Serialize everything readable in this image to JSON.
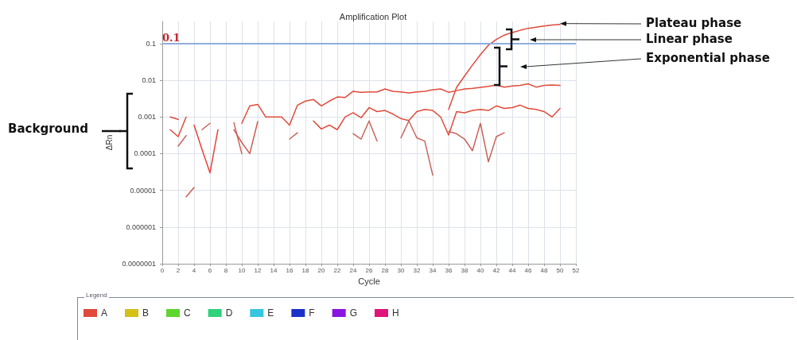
{
  "chart_data": {
    "type": "line",
    "title": "Amplification Plot",
    "xlabel": "Cycle",
    "ylabel": "ΔRn",
    "legend_title": "Legend",
    "x": [
      1,
      2,
      3,
      4,
      5,
      6,
      7,
      8,
      9,
      10,
      11,
      12,
      13,
      14,
      15,
      16,
      17,
      18,
      19,
      20,
      21,
      22,
      23,
      24,
      25,
      26,
      27,
      28,
      29,
      30,
      31,
      32,
      33,
      34,
      35,
      36,
      37,
      38,
      39,
      40,
      41,
      42,
      43,
      44,
      45,
      46,
      47,
      48,
      49,
      50
    ],
    "series": [
      {
        "name": "A",
        "color": "#e04a3a",
        "values": [
          0.001,
          0.00086,
          null,
          null,
          null,
          null,
          null,
          null,
          null,
          0.00067,
          0.002,
          0.0022,
          0.001,
          0.001,
          0.001,
          0.0006,
          0.0021,
          0.0027,
          0.003,
          0.002,
          0.0027,
          0.0035,
          0.0034,
          0.005,
          0.0047,
          0.0048,
          0.0048,
          0.0058,
          0.005,
          0.0048,
          0.0045,
          0.0048,
          0.005,
          0.0055,
          0.0058,
          0.0047,
          0.0052,
          0.0058,
          0.006,
          0.0064,
          0.0068,
          0.0074,
          0.0065,
          0.007,
          0.0072,
          0.008,
          0.0065,
          0.0072,
          0.0074,
          0.0072
        ]
      },
      {
        "color": "#e04a3a",
        "values": [
          null,
          null,
          null,
          null,
          null,
          null,
          null,
          null,
          null,
          null,
          null,
          null,
          null,
          null,
          null,
          null,
          null,
          null,
          null,
          null,
          null,
          null,
          null,
          null,
          null,
          null,
          null,
          null,
          null,
          null,
          null,
          null,
          null,
          null,
          null,
          0.0016,
          0.0064,
          0.013,
          0.026,
          0.05,
          0.09,
          0.13,
          0.17,
          0.2,
          0.23,
          0.26,
          0.28,
          0.3,
          0.32,
          0.33
        ]
      },
      {
        "color": "#e04a3a",
        "values": [
          0.00045,
          0.00029,
          0.001,
          null,
          null,
          null,
          null,
          null,
          null,
          null,
          null,
          null,
          null,
          null,
          null,
          null,
          null,
          null,
          0.00078,
          0.00047,
          0.0006,
          0.00045,
          0.001,
          0.0013,
          0.00095,
          0.0018,
          0.0014,
          0.0015,
          0.0012,
          0.0009,
          0.0008,
          0.0014,
          0.0016,
          0.0015,
          0.001,
          0.00032,
          0.0014,
          0.0013,
          0.0015,
          0.0016,
          0.0015,
          0.002,
          0.0017,
          0.0018,
          0.0021,
          0.0017,
          0.0016,
          0.0014,
          0.001,
          0.0017
        ]
      },
      {
        "color": "#c8645a",
        "values": [
          null,
          0.00016,
          0.00031,
          null,
          0.00045,
          0.00067,
          null,
          null,
          0.0007,
          0.0001,
          null,
          null,
          null,
          null,
          null,
          0.00025,
          0.00037,
          null,
          null,
          null,
          null,
          null,
          null,
          0.00035,
          0.00025,
          0.00078,
          0.00022,
          null,
          null,
          0.00027,
          0.00078,
          0.00027,
          0.00022,
          2.6e-05,
          null,
          0.0004,
          0.00035,
          0.00025,
          0.00012,
          0.00067,
          6e-05,
          0.00029,
          0.00037,
          null,
          null,
          null,
          null,
          null,
          null,
          null
        ]
      },
      {
        "color": "#e8403a",
        "values": [
          null,
          null,
          null,
          0.0006,
          0.00013,
          3e-05,
          0.00045,
          null,
          null,
          null,
          null,
          null,
          null,
          null,
          null,
          null,
          null,
          null,
          null,
          null,
          null,
          null,
          null,
          null,
          null,
          null,
          null,
          null,
          null,
          null,
          null,
          null,
          null,
          null,
          null,
          null,
          null,
          null,
          null,
          null,
          null,
          null,
          null,
          null,
          null,
          null,
          null,
          null,
          null,
          null
        ]
      },
      {
        "color": "#d05a55",
        "values": [
          null,
          null,
          6.7e-06,
          1.2e-05,
          null,
          null,
          null,
          null,
          0.00045,
          0.0002,
          0.0001,
          0.00075,
          null,
          null,
          null,
          null,
          null,
          null,
          null,
          null,
          null,
          null,
          null,
          null,
          null,
          null,
          null,
          null,
          null,
          null,
          null,
          null,
          null,
          null,
          null,
          null,
          null,
          null,
          null,
          null,
          null,
          null,
          null,
          null,
          null,
          null,
          null,
          null,
          null,
          null
        ]
      },
      {
        "name": "B",
        "color": "#d4c019",
        "values": [
          null,
          null,
          null,
          null,
          null,
          null,
          null,
          null,
          null,
          null,
          null,
          null,
          null,
          null,
          null,
          null,
          null,
          null,
          null,
          null,
          null,
          null,
          null,
          null,
          null,
          null,
          null,
          null,
          null,
          null,
          null,
          null,
          null,
          null,
          null,
          null,
          null,
          null,
          null,
          null,
          null,
          null,
          null,
          null,
          null,
          null,
          null,
          null,
          null,
          null
        ]
      },
      {
        "name": "C",
        "color": "#5fd62c",
        "values": [
          null,
          null,
          null,
          null,
          null,
          null,
          null,
          null,
          null,
          null,
          null,
          null,
          null,
          null,
          null,
          null,
          null,
          null,
          null,
          null,
          null,
          null,
          null,
          null,
          null,
          null,
          null,
          null,
          null,
          null,
          null,
          null,
          null,
          null,
          null,
          null,
          null,
          null,
          null,
          null,
          null,
          null,
          null,
          null,
          null,
          null,
          null,
          null,
          null,
          null
        ]
      },
      {
        "name": "D",
        "color": "#2fd27a",
        "values": [
          null,
          null,
          null,
          null,
          null,
          null,
          null,
          null,
          null,
          null,
          null,
          null,
          null,
          null,
          null,
          null,
          null,
          null,
          null,
          null,
          null,
          null,
          null,
          null,
          null,
          null,
          null,
          null,
          null,
          null,
          null,
          null,
          null,
          null,
          null,
          null,
          null,
          null,
          null,
          null,
          null,
          null,
          null,
          null,
          null,
          null,
          null,
          null,
          null,
          null
        ]
      },
      {
        "name": "E",
        "color": "#35c5e0",
        "values": [
          null,
          null,
          null,
          null,
          null,
          null,
          null,
          null,
          null,
          null,
          null,
          null,
          null,
          null,
          null,
          null,
          null,
          null,
          null,
          null,
          null,
          null,
          null,
          null,
          null,
          null,
          null,
          null,
          null,
          null,
          null,
          null,
          null,
          null,
          null,
          null,
          null,
          null,
          null,
          null,
          null,
          null,
          null,
          null,
          null,
          null,
          null,
          null,
          null,
          null
        ]
      },
      {
        "name": "F",
        "color": "#1a32c8",
        "values": [
          null,
          null,
          null,
          null,
          null,
          null,
          null,
          null,
          null,
          null,
          null,
          null,
          null,
          null,
          null,
          null,
          null,
          null,
          null,
          null,
          null,
          null,
          null,
          null,
          null,
          null,
          null,
          null,
          null,
          null,
          null,
          null,
          null,
          null,
          null,
          null,
          null,
          null,
          null,
          null,
          null,
          null,
          null,
          null,
          null,
          null,
          null,
          null,
          null,
          null
        ]
      },
      {
        "name": "G",
        "color": "#8a14e0",
        "values": [
          null,
          null,
          null,
          null,
          null,
          null,
          null,
          null,
          null,
          null,
          null,
          null,
          null,
          null,
          null,
          null,
          null,
          null,
          null,
          null,
          null,
          null,
          null,
          null,
          null,
          null,
          null,
          null,
          null,
          null,
          null,
          null,
          null,
          null,
          null,
          null,
          null,
          null,
          null,
          null,
          null,
          null,
          null,
          null,
          null,
          null,
          null,
          null,
          null,
          null
        ]
      },
      {
        "name": "H",
        "color": "#e0147a",
        "values": [
          null,
          null,
          null,
          null,
          null,
          null,
          null,
          null,
          null,
          null,
          null,
          null,
          null,
          null,
          null,
          null,
          null,
          null,
          null,
          null,
          null,
          null,
          null,
          null,
          null,
          null,
          null,
          null,
          null,
          null,
          null,
          null,
          null,
          null,
          null,
          null,
          null,
          null,
          null,
          null,
          null,
          null,
          null,
          null,
          null,
          null,
          null,
          null,
          null,
          null
        ]
      }
    ],
    "xlim": [
      0,
      52
    ],
    "xticks": [
      0,
      2,
      4,
      6,
      8,
      10,
      12,
      14,
      16,
      18,
      20,
      22,
      24,
      26,
      28,
      30,
      32,
      34,
      36,
      38,
      40,
      42,
      44,
      46,
      48,
      50,
      52
    ],
    "ylim": [
      1e-07,
      0.4
    ],
    "log": true,
    "yticks": [
      {
        "value": 1e-07,
        "label": "0.0000001"
      },
      {
        "value": 1e-06,
        "label": "0.000001"
      },
      {
        "value": 1e-05,
        "label": "0.00001"
      },
      0.0001,
      0.001,
      0.01,
      0.1
    ],
    "ref_lines": [
      {
        "axis": "y",
        "value": 0.1,
        "label": "0.1",
        "color": "#8faee0"
      }
    ],
    "annotations": [
      {
        "text": "Plateau phase",
        "x": 50,
        "y": 0.35
      },
      "Linear phase",
      "Exponential phase",
      "Background"
    ],
    "grid": true,
    "legend": "bottom",
    "marker": "none",
    "line_style": "solid"
  }
}
